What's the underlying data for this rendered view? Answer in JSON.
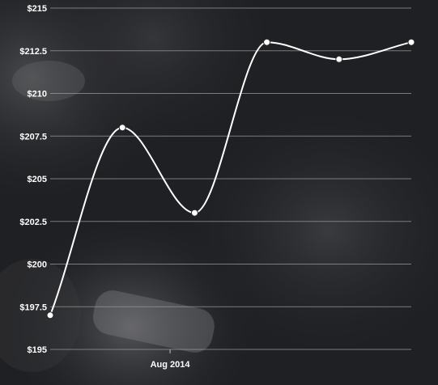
{
  "chart_data": {
    "type": "line",
    "x": [
      "",
      "",
      "",
      "",
      "",
      ""
    ],
    "x_tick_labels": [
      {
        "index": 1.66,
        "label": "Aug 2014"
      }
    ],
    "series": [
      {
        "values": [
          197,
          208,
          203,
          213,
          212,
          213
        ]
      }
    ],
    "ylim": [
      195,
      215
    ],
    "y_ticks": [
      "$195",
      "$197.5",
      "$200",
      "$202.5",
      "$205",
      "$207.5",
      "$210",
      "$212.5",
      "$215"
    ],
    "y_tick_values": [
      195,
      197.5,
      200,
      202.5,
      205,
      207.5,
      210,
      212.5,
      215
    ],
    "grid": true,
    "line_style": "smooth",
    "colors": {
      "line": "#ffffff",
      "grid": "#9a9a9a",
      "text": "#ffffff",
      "background": "#1f2023"
    }
  }
}
